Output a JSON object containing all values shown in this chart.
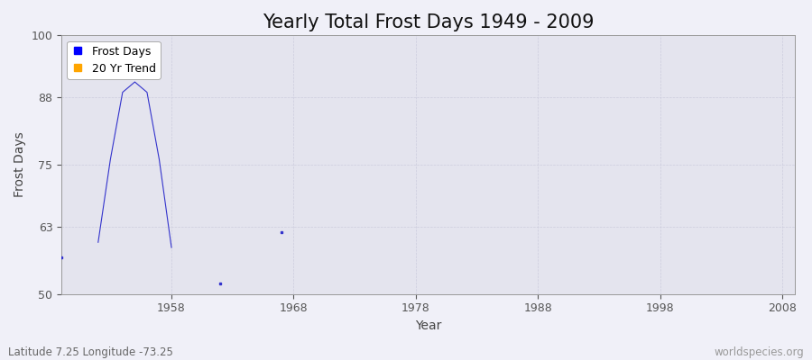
{
  "title": "Yearly Total Frost Days 1949 - 2009",
  "xlabel": "Year",
  "ylabel": "Frost Days",
  "subtitle": "Latitude 7.25 Longitude -73.25",
  "watermark": "worldspecies.org",
  "xlim": [
    1949,
    2009
  ],
  "ylim": [
    50,
    100
  ],
  "yticks": [
    50,
    63,
    75,
    88,
    100
  ],
  "xticks": [
    1958,
    1968,
    1978,
    1988,
    1998,
    2008
  ],
  "line_connected_years": [
    1952,
    1953,
    1954,
    1955,
    1956,
    1957,
    1958
  ],
  "line_connected_values": [
    60,
    76,
    89,
    91,
    89,
    76,
    59
  ],
  "isolated_years": [
    1949,
    1962,
    1967
  ],
  "isolated_values": [
    57,
    52,
    62
  ],
  "line_color": "#3333cc",
  "background_color": "#f0f0f8",
  "plot_bg_color": "#e4e4ee",
  "grid_color": "#ccccdd",
  "legend_frost_color": "#0000ff",
  "legend_trend_color": "#ffa500",
  "title_fontsize": 15,
  "axis_label_fontsize": 10,
  "tick_fontsize": 9,
  "legend_fontsize": 9
}
